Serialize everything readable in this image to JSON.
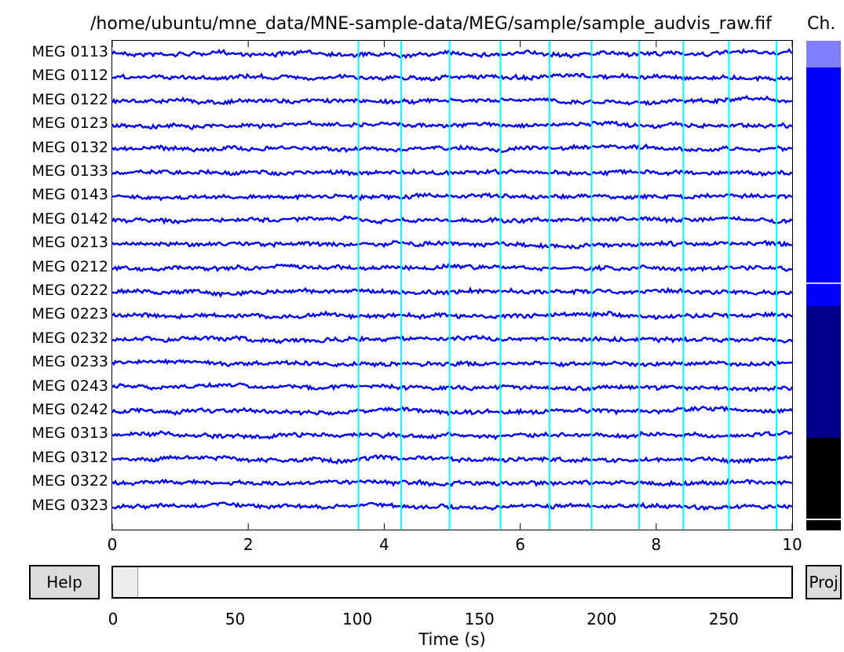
{
  "title": "/home/ubuntu/mne_data/MNE-sample-data/MEG/sample/sample_audvis_raw.fif",
  "ch_header": "Ch.",
  "channels": [
    "MEG 0113",
    "MEG 0112",
    "MEG 0122",
    "MEG 0123",
    "MEG 0132",
    "MEG 0133",
    "MEG 0143",
    "MEG 0142",
    "MEG 0213",
    "MEG 0212",
    "MEG 0222",
    "MEG 0223",
    "MEG 0232",
    "MEG 0233",
    "MEG 0243",
    "MEG 0242",
    "MEG 0313",
    "MEG 0312",
    "MEG 0322",
    "MEG 0323"
  ],
  "chart_data": {
    "type": "line",
    "x_range": [
      0,
      10
    ],
    "x_ticks": [
      "0",
      "2",
      "4",
      "6",
      "8",
      "10"
    ],
    "event_times": [
      3.62,
      4.25,
      4.96,
      5.71,
      6.43,
      7.05,
      7.75,
      8.4,
      9.07,
      9.77
    ],
    "trace_color": "#0000ee",
    "event_color": "#00ffff"
  },
  "buttons": {
    "help": "Help",
    "proj": "Proj"
  },
  "scrollbar": {
    "ticks": [
      "0",
      "50",
      "100",
      "150",
      "200",
      "250"
    ],
    "total_seconds": 277.7,
    "view_start": 0,
    "view_duration": 10
  },
  "x_axis_label": "Time (s)",
  "colors": {
    "ch_light": "#8080ff",
    "ch_blue": "#0000ff",
    "ch_navy": "#00008b",
    "ch_black": "#000000"
  }
}
